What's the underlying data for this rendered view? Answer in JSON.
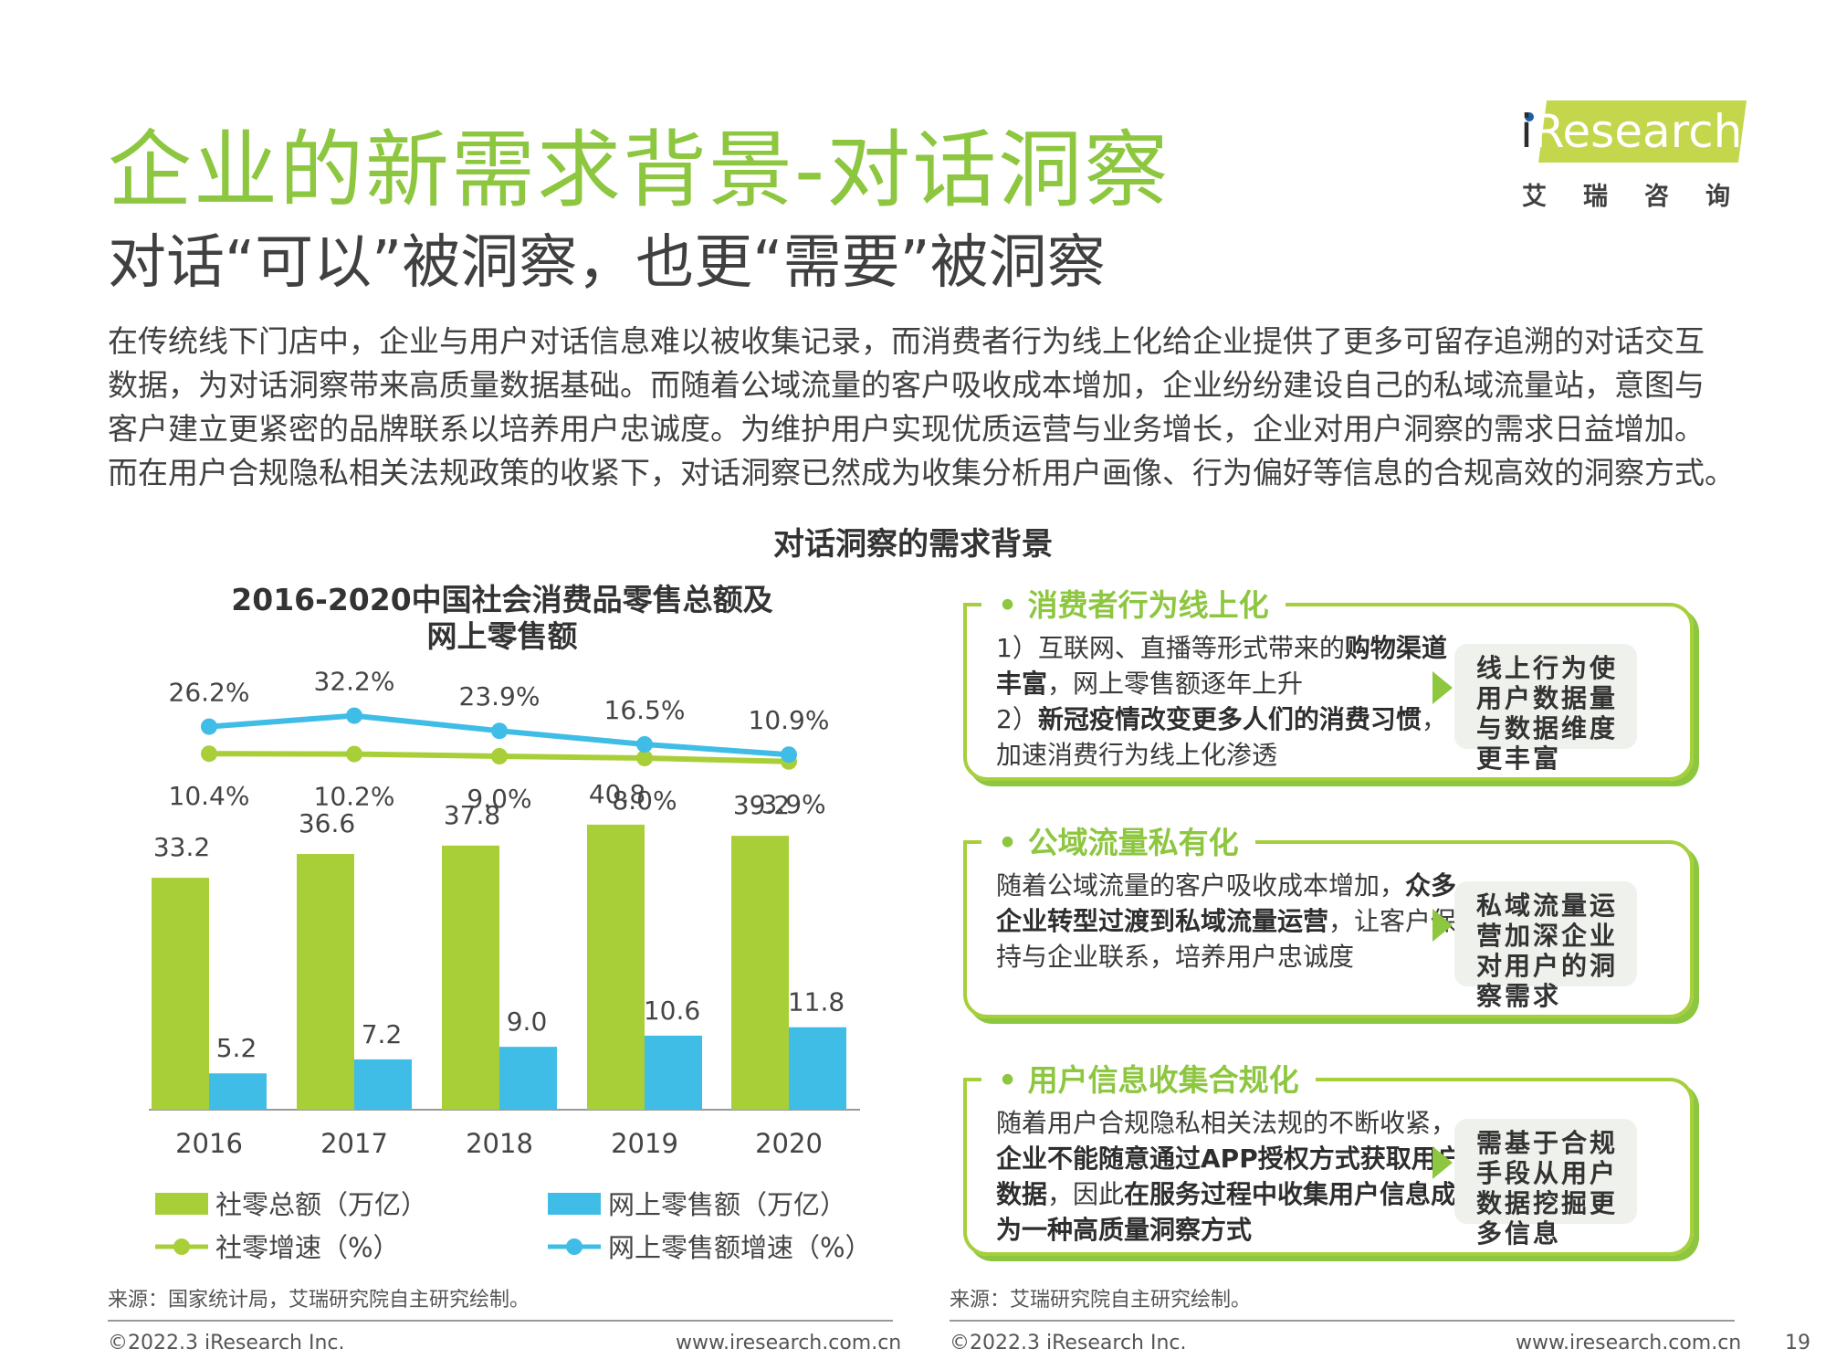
{
  "header": {
    "title": "企业的新需求背景-对话洞察",
    "subtitle": "对话“可以”被洞察，也更“需要”被洞察",
    "intro_lines": [
      "在传统线下门店中，企业与用户对话信息难以被收集记录，而消费者行为线上化给企业提供了更多可留存追溯的对话交互",
      "数据，为对话洞察带来高质量数据基础。而随着公域流量的客户吸收成本增加，企业纷纷建设自己的私域流量站，意图与",
      "客户建立更紧密的品牌联系以培养用户忠诚度。为维护用户实现优质运营与业务增长，企业对用户洞察的需求日益增加。",
      "而在用户合规隐私相关法规政策的收紧下，对话洞察已然成为收集分析用户画像、行为偏好等信息的合规高效的洞察方式。"
    ],
    "section_title": "对话洞察的需求背景"
  },
  "logo": {
    "text_i": "i",
    "text_rest": "Research",
    "cn": "艾瑞咨询",
    "accent": "#c3d64c"
  },
  "chart_data": {
    "type": "bar",
    "title_lines": [
      "2016-2020中国社会消费品零售总额及",
      "网上零售额"
    ],
    "categories": [
      "2016",
      "2017",
      "2018",
      "2019",
      "2020"
    ],
    "series": [
      {
        "name": "社零总额（万亿）",
        "kind": "bar",
        "color": "#a9cf38",
        "values": [
          33.2,
          36.6,
          37.8,
          40.8,
          39.2
        ],
        "labels": [
          "33.2",
          "36.6",
          "37.8",
          "40.8",
          "39.2"
        ]
      },
      {
        "name": "网上零售额（万亿）",
        "kind": "bar",
        "color": "#3fbde6",
        "values": [
          5.2,
          7.2,
          9.0,
          10.6,
          11.8
        ],
        "labels": [
          "5.2",
          "7.2",
          "9.0",
          "10.6",
          "11.8"
        ]
      },
      {
        "name": "社零增速（%）",
        "kind": "line",
        "color": "#a9cf38",
        "values": [
          10.4,
          10.2,
          9.0,
          8.0,
          -3.9
        ],
        "labels": [
          "10.4%",
          "10.2%",
          "9.0%",
          "8.0%",
          "-3.9%"
        ]
      },
      {
        "name": "网上零售额增速（%）",
        "kind": "line",
        "color": "#3fbde6",
        "values": [
          26.2,
          32.2,
          23.9,
          16.5,
          10.9
        ],
        "labels": [
          "26.2%",
          "32.2%",
          "23.9%",
          "16.5%",
          "10.9%"
        ]
      }
    ],
    "legend_position": "bottom",
    "grid": false
  },
  "cards": [
    {
      "heading": "•  消费者行为线上化",
      "body_parts": [
        {
          "t": "1）互联网、直播等形式带来的",
          "b": false
        },
        {
          "t": "购物渠道丰富",
          "b": true
        },
        {
          "t": "，网上零售额逐年上升",
          "b": false
        },
        {
          "t": "2）",
          "b": false,
          "br": true
        },
        {
          "t": "新冠疫情改变更多人们的消费习惯",
          "b": true
        },
        {
          "t": "，加速消费行为线上化渗透",
          "b": false
        }
      ],
      "tag": "线上行为使用户数据量与数据维度更丰富"
    },
    {
      "heading": "•  公域流量私有化",
      "body_parts": [
        {
          "t": "随着公域流量的客户吸收成本增加，",
          "b": false
        },
        {
          "t": "众多企业转型过渡到私域流量运营",
          "b": true
        },
        {
          "t": "，让客户保持与企业联系，培养用户忠诚度",
          "b": false
        }
      ],
      "tag": "私域流量运营加深企业对用户的洞察需求"
    },
    {
      "heading": "•  用户信息收集合规化",
      "body_parts": [
        {
          "t": "随着用户合规隐私相关法规的不断收紧，",
          "b": false
        },
        {
          "t": "企业不能随意通过APP授权方式获取用户数据",
          "b": true
        },
        {
          "t": "，因此",
          "b": false
        },
        {
          "t": "在服务过程中收集用户信息成为一种高质量洞察方式",
          "b": true
        }
      ],
      "tag": "需基于合规手段从用户数据挖掘更多信息"
    }
  ],
  "footer": {
    "source_left": "来源：国家统计局，艾瑞研究院自主研究绘制。",
    "source_right": "来源：艾瑞研究院自主研究绘制。",
    "copyright_left": "©2022.3 iResearch Inc.",
    "url_left": "www.iresearch.com.cn",
    "copyright_right": "©2022.3 iResearch Inc.",
    "url_right": "www.iresearch.com.cn",
    "page_number": "19"
  }
}
